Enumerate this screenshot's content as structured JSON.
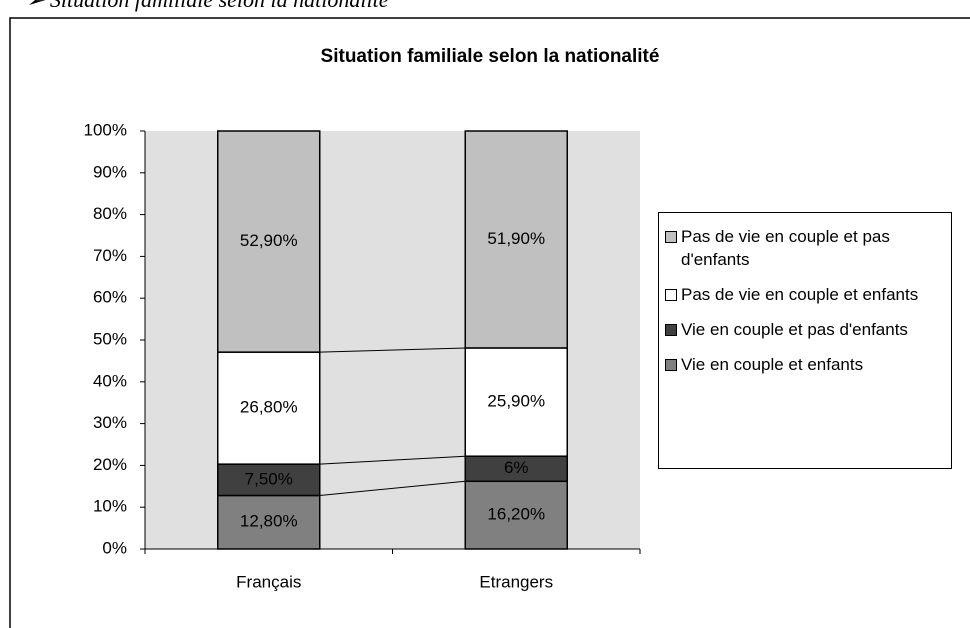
{
  "caption": "➢ Situation familiale selon la nationalité",
  "chart_data": {
    "type": "stacked_bar",
    "title": "Situation familiale selon la nationalité",
    "categories": [
      "Français",
      "Etrangers"
    ],
    "series": [
      {
        "name": "Vie en couple et enfants",
        "color": "#808080",
        "values": [
          12.8,
          16.2
        ],
        "value_labels": [
          "12,80%",
          "16,20%"
        ]
      },
      {
        "name": "Vie en couple et pas d'enfants",
        "color": "#404040",
        "values": [
          7.5,
          6
        ],
        "value_labels": [
          "7,50%",
          "6%"
        ]
      },
      {
        "name": "Pas de vie en couple et enfants",
        "color": "#ffffff",
        "values": [
          26.8,
          25.9
        ],
        "value_labels": [
          "26,80%",
          "25,90%"
        ]
      },
      {
        "name": "Pas de vie en couple et pas d'enfants",
        "color": "#c0c0c0",
        "values": [
          52.9,
          51.9
        ],
        "value_labels": [
          "52,90%",
          "51,90%"
        ]
      }
    ],
    "ylim": [
      0,
      100
    ],
    "yticks": [
      {
        "value": 0,
        "label": "0%"
      },
      {
        "value": 10,
        "label": "10%"
      },
      {
        "value": 20,
        "label": "20%"
      },
      {
        "value": 30,
        "label": "30%"
      },
      {
        "value": 40,
        "label": "40%"
      },
      {
        "value": 50,
        "label": "50%"
      },
      {
        "value": 60,
        "label": "60%"
      },
      {
        "value": 70,
        "label": "70%"
      },
      {
        "value": 80,
        "label": "80%"
      },
      {
        "value": 90,
        "label": "90%"
      },
      {
        "value": 100,
        "label": "100%"
      }
    ],
    "legend": "right"
  }
}
